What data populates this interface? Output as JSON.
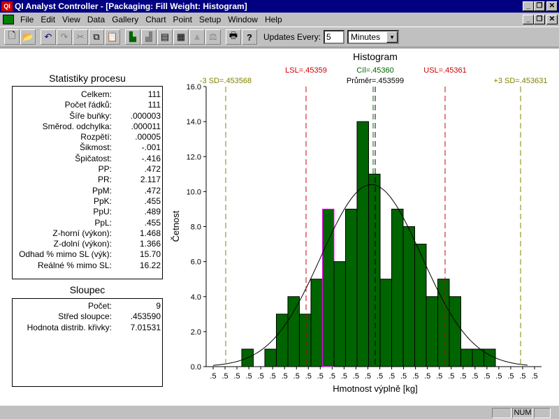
{
  "window": {
    "app_icon_text": "QI",
    "title": "QI Analyst Controller - [Packaging: Fill Weight: Histogram]",
    "buttons": [
      "_",
      "❐",
      "✕"
    ]
  },
  "menu": {
    "items": [
      "File",
      "Edit",
      "View",
      "Data",
      "Gallery",
      "Chart",
      "Point",
      "Setup",
      "Window",
      "Help"
    ],
    "mdi_buttons": [
      "_",
      "❐",
      "✕"
    ]
  },
  "toolbar": {
    "updates_label": "Updates Every:",
    "updates_value": "5",
    "updates_unit": "Minutes"
  },
  "stats": {
    "title": "Statistiky procesu",
    "rows": [
      {
        "label": "Celkem:",
        "value": "111"
      },
      {
        "label": "Počet řádků:",
        "value": "111"
      },
      {
        "label": "Šíře buňky:",
        "value": ".000003"
      },
      {
        "label": "Směrod. odchylka:",
        "value": ".000011"
      },
      {
        "label": "Rozpětí:",
        "value": ".00005"
      },
      {
        "label": "Šikmost:",
        "value": "-.001"
      },
      {
        "label": "Špičatost:",
        "value": "-.416"
      },
      {
        "label": "PP:",
        "value": ".472"
      },
      {
        "label": "PR:",
        "value": "2.117"
      },
      {
        "label": "PpM:",
        "value": ".472"
      },
      {
        "label": "PpK:",
        "value": ".455"
      },
      {
        "label": "PpU:",
        "value": ".489"
      },
      {
        "label": "PpL:",
        "value": ".455"
      },
      {
        "label": "Z-horní (výkon):",
        "value": "1.468"
      },
      {
        "label": "Z-dolní (výkon):",
        "value": "1.366"
      },
      {
        "label": "Odhad % mimo SL (výk):",
        "value": "15.70"
      },
      {
        "label": "Reálné % mimo SL:",
        "value": "16.22"
      }
    ]
  },
  "column": {
    "title": "Sloupec",
    "rows": [
      {
        "label": "Počet:",
        "value": "9"
      },
      {
        "label": "Střed sloupce:",
        "value": ".453590"
      },
      {
        "label": "Hodnota distrib. křivky:",
        "value": "7.01531"
      }
    ]
  },
  "chart_data": {
    "type": "bar",
    "title": "Histogram",
    "xlabel": "Hmotnost výplně [kg]",
    "ylabel": "Četnost",
    "ylim": [
      0,
      16
    ],
    "yticks": [
      "0.0",
      "2.0",
      "4.0",
      "6.0",
      "8.0",
      "10.0",
      "12.0",
      "14.0",
      "16.0"
    ],
    "x_tick_label": ".5",
    "x_tick_count": 28,
    "values": [
      1,
      0,
      1,
      3,
      4,
      3,
      5,
      9,
      6,
      9,
      14,
      11,
      5,
      9,
      8,
      7,
      4,
      5,
      4,
      1,
      1,
      1
    ],
    "highlighted_bar_index": 7,
    "bar_color": "#006400",
    "annotations": {
      "minus3sd": "-3 SD=.453568",
      "lsl": "LSL=.45359",
      "target": "Cíl=.45360",
      "mean": "Průměr=.453599",
      "usl": "USL=.45361",
      "plus3sd": "+3 SD=.453631"
    },
    "colors": {
      "sd": "#808000",
      "spec": "#cc0000",
      "target": "#006400",
      "mean": "#000000"
    }
  },
  "statusbar": {
    "num": "NUM"
  }
}
